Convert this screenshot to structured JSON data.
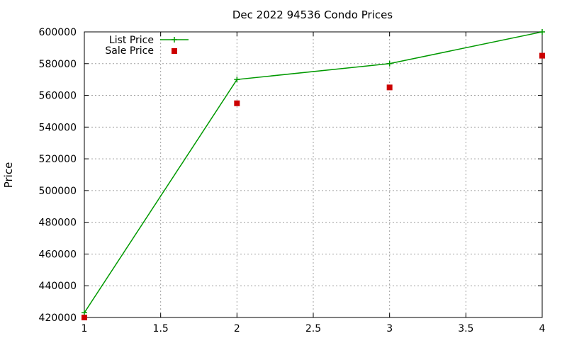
{
  "chart_data": {
    "type": "line",
    "title": "Dec 2022 94536 Condo Prices",
    "xlabel": "",
    "ylabel": "Price",
    "x": [
      1,
      2,
      3,
      4
    ],
    "xlim": [
      1,
      4
    ],
    "ylim": [
      420000,
      600000
    ],
    "x_ticks": [
      1,
      1.5,
      2,
      2.5,
      3,
      3.5,
      4
    ],
    "y_ticks": [
      420000,
      440000,
      460000,
      480000,
      500000,
      520000,
      540000,
      560000,
      580000,
      600000
    ],
    "grid": true,
    "legend_position": "top-left",
    "series": [
      {
        "name": "List Price",
        "style": "line with plus markers",
        "color": "#009900",
        "values": [
          423000,
          570000,
          580000,
          600000
        ]
      },
      {
        "name": "Sale Price",
        "style": "square markers",
        "color": "#cc0000",
        "values": [
          420000,
          555000,
          565000,
          585000
        ]
      }
    ]
  }
}
